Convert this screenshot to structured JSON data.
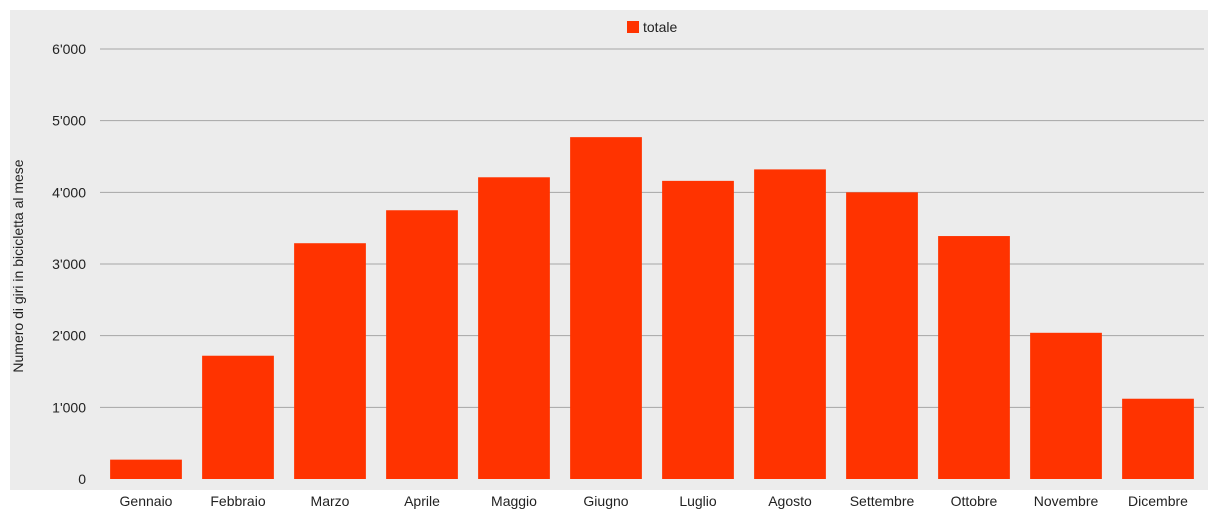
{
  "chart_data": {
    "type": "bar",
    "title": "",
    "xlabel": "",
    "ylabel": "Numero di giri in bicicletta al mese",
    "categories": [
      "Gennaio",
      "Febbraio",
      "Marzo",
      "Aprile",
      "Maggio",
      "Giugno",
      "Luglio",
      "Agosto",
      "Settembre",
      "Ottobre",
      "Novembre",
      "Dicembre"
    ],
    "series": [
      {
        "name": "totale",
        "color": "#ff3300",
        "values": [
          270,
          1720,
          3290,
          3750,
          4210,
          4770,
          4160,
          4320,
          4000,
          3390,
          2040,
          1120
        ]
      }
    ],
    "ylim": [
      0,
      6000
    ],
    "yticks": [
      0,
      1000,
      2000,
      3000,
      4000,
      5000,
      6000
    ],
    "ytick_labels": [
      "0",
      "1'000",
      "2'000",
      "3'000",
      "4'000",
      "5'000",
      "6'000"
    ],
    "grid": true,
    "legend_position": "top-center",
    "plot_background": "#ececec",
    "gridline_color": "#a6a6a6"
  }
}
